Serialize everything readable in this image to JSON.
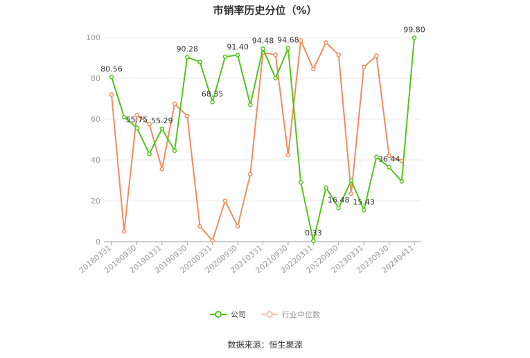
{
  "title": "市销率历史分位（%）",
  "source": "数据来源：恒生聚源",
  "chart_data": {
    "type": "line",
    "ylim": [
      0,
      100
    ],
    "yticks": [
      0,
      20,
      40,
      60,
      80,
      100
    ],
    "grid": true,
    "legend_position": "bottom-center",
    "x_tick_labels": [
      "20180331",
      "20180930",
      "20190331",
      "20190930",
      "20200331",
      "20200930",
      "20210331",
      "20210930",
      "20220331",
      "20220930",
      "20230331",
      "20230930",
      "20240411"
    ],
    "series": [
      {
        "name": "公司",
        "color": "#52c41a",
        "values": [
          80.56,
          61.0,
          55.75,
          43.0,
          55.29,
          44.5,
          90.28,
          88.0,
          68.35,
          90.5,
          91.4,
          67.0,
          94.48,
          80.0,
          94.68,
          29.0,
          0.33,
          26.5,
          16.48,
          30.0,
          15.43,
          41.5,
          36.44,
          29.5,
          99.8
        ],
        "labels": [
          "80.56",
          "",
          "55.75",
          "",
          "55.29",
          "",
          "90.28",
          "",
          "68.35",
          "",
          "91.40",
          "",
          "94.48",
          "",
          "94.68",
          "",
          "0.33",
          "",
          "16.48",
          "",
          "15.43",
          "",
          "36.44",
          "",
          "99.80"
        ]
      },
      {
        "name": "行业中位数",
        "color": "#f28c5e",
        "values": [
          72.0,
          5.0,
          62.0,
          57.5,
          35.5,
          67.5,
          61.5,
          7.5,
          0.5,
          20.0,
          7.5,
          33.0,
          92.5,
          91.5,
          42.5,
          98.5,
          84.5,
          97.5,
          91.5,
          23.5,
          85.5,
          91.0,
          42.0,
          39.5,
          null
        ]
      }
    ]
  }
}
